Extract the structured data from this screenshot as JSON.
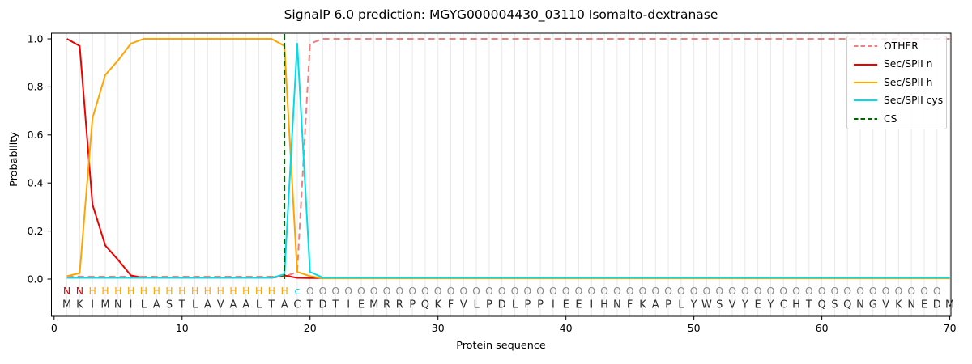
{
  "chart_data": {
    "type": "line",
    "title": "SignalP 6.0 prediction: MGYG000004430_03110 Isomalto-dextranase",
    "xlabel": "Protein sequence",
    "ylabel": "Probability",
    "xticks": [
      0,
      10,
      20,
      30,
      40,
      50,
      60,
      70
    ],
    "yticks": [
      0.0,
      0.2,
      0.4,
      0.6,
      0.8,
      1.0
    ],
    "xlim": [
      0,
      70.5
    ],
    "ylim": [
      0.0,
      1.05
    ],
    "grid": "light vertical gridline at every sequence position 1-70",
    "legend_position": "upper right",
    "x": [
      1,
      2,
      3,
      4,
      5,
      6,
      7,
      8,
      9,
      10,
      11,
      12,
      13,
      14,
      15,
      16,
      17,
      18,
      19,
      20,
      21,
      22,
      23,
      24,
      25,
      26,
      27,
      28,
      29,
      30,
      31,
      32,
      33,
      34,
      35,
      36,
      37,
      38,
      39,
      40,
      41,
      42,
      43,
      44,
      45,
      46,
      47,
      48,
      49,
      50,
      51,
      52,
      53,
      54,
      55,
      56,
      57,
      58,
      59,
      60,
      61,
      62,
      63,
      64,
      65,
      66,
      67,
      68,
      69,
      70
    ],
    "series": [
      {
        "name": "OTHER",
        "color": "#f08080",
        "style": "dashed",
        "values": [
          0.01,
          0.01,
          0.01,
          0.01,
          0.01,
          0.01,
          0.01,
          0.01,
          0.01,
          0.01,
          0.01,
          0.01,
          0.01,
          0.01,
          0.01,
          0.01,
          0.01,
          0.01,
          0.03,
          0.98,
          1.0,
          1.0,
          1.0,
          1.0,
          1.0,
          1.0,
          1.0,
          1.0,
          1.0,
          1.0,
          1.0,
          1.0,
          1.0,
          1.0,
          1.0,
          1.0,
          1.0,
          1.0,
          1.0,
          1.0,
          1.0,
          1.0,
          1.0,
          1.0,
          1.0,
          1.0,
          1.0,
          1.0,
          1.0,
          1.0,
          1.0,
          1.0,
          1.0,
          1.0,
          1.0,
          1.0,
          1.0,
          1.0,
          1.0,
          1.0,
          1.0,
          1.0,
          1.0,
          1.0,
          1.0,
          1.0,
          1.0,
          1.0,
          1.0,
          1.0
        ]
      },
      {
        "name": "Sec/SPII n",
        "color": "#ee0000",
        "style": "solid",
        "values": [
          1.0,
          0.97,
          0.31,
          0.14,
          0.08,
          0.015,
          0.005,
          0.005,
          0.005,
          0.005,
          0.005,
          0.005,
          0.005,
          0.005,
          0.005,
          0.005,
          0.005,
          0.015,
          0.005,
          0.004,
          0.004,
          0.004,
          0.004,
          0.004,
          0.004,
          0.004,
          0.004,
          0.004,
          0.004,
          0.004,
          0.004,
          0.004,
          0.004,
          0.004,
          0.004,
          0.004,
          0.004,
          0.004,
          0.004,
          0.004,
          0.004,
          0.004,
          0.004,
          0.004,
          0.004,
          0.004,
          0.004,
          0.004,
          0.004,
          0.004,
          0.004,
          0.004,
          0.004,
          0.004,
          0.004,
          0.004,
          0.004,
          0.004,
          0.004,
          0.004,
          0.004,
          0.004,
          0.004,
          0.004,
          0.004,
          0.004,
          0.004,
          0.004,
          0.004,
          0.004
        ]
      },
      {
        "name": "Sec/SPII h",
        "color": "#ffa500",
        "style": "solid",
        "values": [
          0.012,
          0.025,
          0.67,
          0.85,
          0.91,
          0.98,
          1.0,
          1.0,
          1.0,
          1.0,
          1.0,
          1.0,
          1.0,
          1.0,
          1.0,
          1.0,
          1.0,
          0.97,
          0.03,
          0.012,
          0.003,
          0.003,
          0.003,
          0.003,
          0.003,
          0.003,
          0.003,
          0.003,
          0.003,
          0.003,
          0.003,
          0.003,
          0.003,
          0.003,
          0.003,
          0.003,
          0.003,
          0.003,
          0.003,
          0.003,
          0.003,
          0.003,
          0.003,
          0.003,
          0.003,
          0.003,
          0.003,
          0.003,
          0.003,
          0.003,
          0.003,
          0.003,
          0.003,
          0.003,
          0.003,
          0.003,
          0.003,
          0.003,
          0.003,
          0.003,
          0.003,
          0.003,
          0.003,
          0.003,
          0.003,
          0.003,
          0.003,
          0.003,
          0.003,
          0.003
        ]
      },
      {
        "name": "Sec/SPII cys",
        "color": "#00dde8",
        "style": "solid",
        "values": [
          0.005,
          0.005,
          0.005,
          0.005,
          0.005,
          0.005,
          0.005,
          0.005,
          0.005,
          0.005,
          0.005,
          0.005,
          0.005,
          0.005,
          0.005,
          0.005,
          0.005,
          0.02,
          0.98,
          0.03,
          0.006,
          0.006,
          0.006,
          0.006,
          0.006,
          0.006,
          0.006,
          0.006,
          0.006,
          0.006,
          0.006,
          0.006,
          0.006,
          0.006,
          0.006,
          0.006,
          0.006,
          0.006,
          0.006,
          0.006,
          0.006,
          0.006,
          0.006,
          0.006,
          0.006,
          0.006,
          0.006,
          0.006,
          0.006,
          0.006,
          0.006,
          0.006,
          0.006,
          0.006,
          0.006,
          0.006,
          0.006,
          0.006,
          0.006,
          0.006,
          0.006,
          0.006,
          0.006,
          0.006,
          0.006,
          0.006,
          0.006,
          0.006,
          0.006,
          0.006
        ]
      }
    ],
    "cs_marker": {
      "label": "CS",
      "position": 18,
      "color": "#006400",
      "style": "dashed"
    },
    "sequence": {
      "residues": "MKIMNILASTLAVAALTACTDTIEMRRPQKFVLPDLPPIEEIHNFKAPLYWSVYEYCHTQSQNGVKNEDM",
      "annotation": "NNHHHHHHHHHHHHHHHHcOOOOOOOOOOOOOOOOOOOOOOOOOOOOOOOOOOOOOOOOOOOOOOOOOO",
      "annotation_colors": {
        "N": "#ee0000",
        "H": "#ffa500",
        "c": "#00cfe0",
        "O": "#8a8a8a"
      },
      "residue_color": "#2d2d2d"
    }
  },
  "legend": {
    "items": [
      {
        "label": "OTHER",
        "color": "#f08080",
        "style": "dashed"
      },
      {
        "label": "Sec/SPII n",
        "color": "#ee0000",
        "style": "solid"
      },
      {
        "label": "Sec/SPII h",
        "color": "#ffa500",
        "style": "solid"
      },
      {
        "label": "Sec/SPII cys",
        "color": "#00dde8",
        "style": "solid"
      },
      {
        "label": "CS",
        "color": "#006400",
        "style": "dashed"
      }
    ]
  }
}
